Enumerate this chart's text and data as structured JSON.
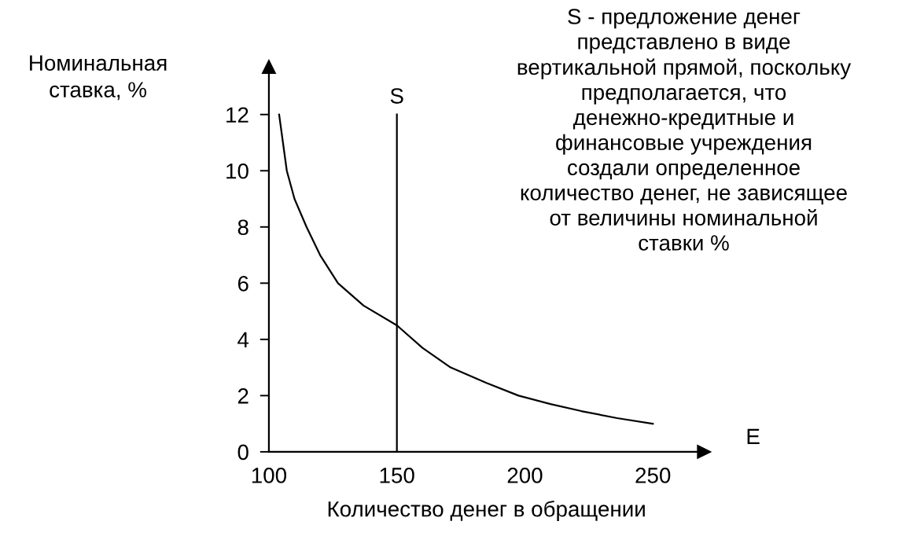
{
  "chart_data": {
    "type": "line",
    "xlabel": "Количество денег в обращении",
    "ylabel": "Номинальная\nставка, %",
    "series": [
      {
        "x": [
          104,
          105.5,
          107,
          110,
          114.7,
          120,
          127,
          137,
          150,
          160,
          171,
          185,
          197.5,
          210,
          222,
          236,
          250
        ],
        "values": [
          12,
          11,
          10,
          9,
          8,
          7,
          6,
          5.2,
          4.5,
          3.7,
          3.0,
          2.45,
          2.0,
          1.7,
          1.45,
          1.2,
          1.0
        ],
        "color": "#000000"
      },
      {
        "name": "S",
        "x": [
          150,
          150,
          150
        ],
        "values": [
          0,
          6,
          12
        ],
        "color": "#000000"
      }
    ],
    "annotations": [
      "E",
      "S - предложение денег\nпредставлено в виде\nвертикальной прямой, поскольку\nпредполагается, что\nденежно-кредитные и\nфинансовые учреждения\nсоздали определенное\nколичество денег, не зависящее\nот величины номинальной\nставки %"
    ],
    "xlim": [
      100,
      270
    ],
    "ylim": [
      0,
      13.7
    ],
    "xticks": [
      100,
      150,
      200,
      250
    ],
    "yticks": [
      0,
      2,
      4,
      6,
      8,
      10,
      12
    ],
    "grid": false,
    "legend": false,
    "marker": "none",
    "line_style": "solid"
  }
}
